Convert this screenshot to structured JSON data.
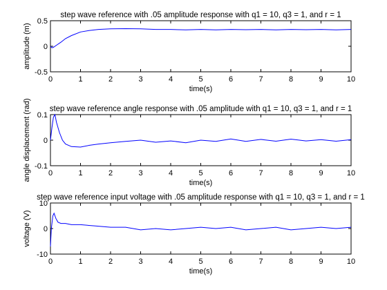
{
  "line_color": "#0000ff",
  "chart_data": [
    {
      "type": "line",
      "title": "step wave reference with .05 amplitude response with q1 = 10, q3 = 1, and r = 1",
      "xlabel": "time(s)",
      "ylabel": "amplitude (m)",
      "xlim": [
        0,
        10
      ],
      "ylim": [
        -0.5,
        0.5
      ],
      "xticks": [
        "0",
        "1",
        "2",
        "3",
        "4",
        "5",
        "6",
        "7",
        "8",
        "9",
        "10"
      ],
      "yticks": [
        "-0.5",
        "0",
        "0.5"
      ],
      "grid": false,
      "series": [
        {
          "x": [
            0,
            0.05,
            0.1,
            0.2,
            0.35,
            0.5,
            0.7,
            1.0,
            1.3,
            1.6,
            2.0,
            2.5,
            3.0,
            3.5,
            4.0,
            4.5,
            5.0,
            5.5,
            6.0,
            6.5,
            7.0,
            7.5,
            8.0,
            8.5,
            9.0,
            9.5,
            10.0
          ],
          "y": [
            0.0,
            -0.03,
            -0.02,
            0.02,
            0.08,
            0.15,
            0.21,
            0.28,
            0.31,
            0.33,
            0.34,
            0.345,
            0.34,
            0.33,
            0.33,
            0.32,
            0.33,
            0.32,
            0.33,
            0.325,
            0.33,
            0.32,
            0.33,
            0.325,
            0.33,
            0.32,
            0.33
          ]
        }
      ]
    },
    {
      "type": "line",
      "title": "step wave reference angle response with .05 amplitude with q1 = 10, q3 = 1, and r = 1",
      "xlabel": "time(s)",
      "ylabel": "angle displacement (rad)",
      "xlim": [
        0,
        10
      ],
      "ylim": [
        -0.1,
        0.1
      ],
      "xticks": [
        "0",
        "1",
        "2",
        "3",
        "4",
        "5",
        "6",
        "7",
        "8",
        "9",
        "10"
      ],
      "yticks": [
        "-0.1",
        "0",
        "0.1"
      ],
      "grid": false,
      "series": [
        {
          "x": [
            0,
            0.05,
            0.1,
            0.15,
            0.2,
            0.3,
            0.4,
            0.5,
            0.7,
            1.0,
            1.3,
            1.6,
            2.0,
            2.5,
            3.0,
            3.5,
            4.0,
            4.5,
            5.0,
            5.5,
            6.0,
            6.5,
            7.0,
            7.5,
            8.0,
            8.5,
            9.0,
            9.5,
            10.0
          ],
          "y": [
            0.0,
            0.05,
            0.09,
            0.1,
            0.07,
            0.03,
            0.0,
            -0.015,
            -0.025,
            -0.027,
            -0.02,
            -0.015,
            -0.01,
            -0.005,
            0.0,
            -0.008,
            -0.003,
            -0.01,
            0.0,
            -0.005,
            0.005,
            -0.005,
            0.003,
            -0.004,
            0.004,
            -0.003,
            0.002,
            -0.004,
            0.002
          ]
        }
      ]
    },
    {
      "type": "line",
      "title": "step wave reference input voltage with .05 amplitude response with q1 = 10, q3 = 1, and r = 1",
      "xlabel": "time(s)",
      "ylabel": "voltage (V)",
      "xlim": [
        0,
        10
      ],
      "ylim": [
        -10,
        10
      ],
      "xticks": [
        "0",
        "1",
        "2",
        "3",
        "4",
        "5",
        "6",
        "7",
        "8",
        "9",
        "10"
      ],
      "yticks": [
        "-10",
        "0",
        "10"
      ],
      "grid": false,
      "series": [
        {
          "x": [
            0,
            0.03,
            0.08,
            0.12,
            0.18,
            0.25,
            0.35,
            0.5,
            0.7,
            1.0,
            1.5,
            2.0,
            2.5,
            3.0,
            3.5,
            4.0,
            4.5,
            5.0,
            5.5,
            6.0,
            6.5,
            7.0,
            7.5,
            8.0,
            8.5,
            9.0,
            9.5,
            10.0
          ],
          "y": [
            -7.0,
            0.0,
            5.0,
            6.0,
            4.0,
            2.5,
            2.0,
            2.0,
            1.5,
            1.5,
            1.0,
            0.5,
            0.5,
            -0.5,
            0.0,
            -0.5,
            0.0,
            0.5,
            0.0,
            0.5,
            -0.5,
            0.0,
            0.5,
            -0.5,
            0.0,
            0.5,
            0.0,
            0.5
          ]
        }
      ]
    }
  ]
}
